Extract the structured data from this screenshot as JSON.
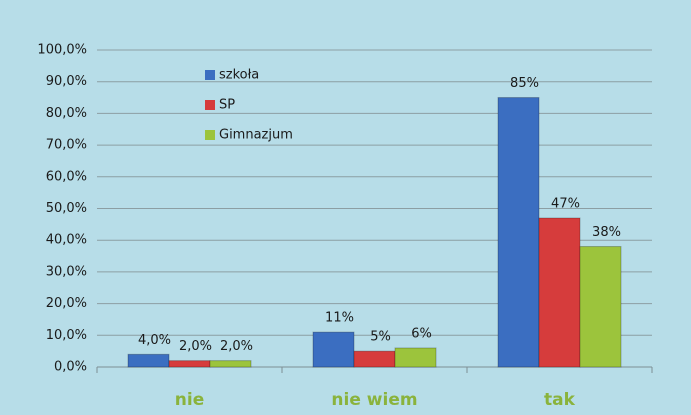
{
  "chart_data": {
    "type": "bar",
    "categories": [
      "nie",
      "nie wiem",
      "tak"
    ],
    "series": [
      {
        "name": "szkoła",
        "color": "#3b6ec1",
        "values": [
          4,
          11,
          85
        ],
        "value_labels": [
          "4,0%",
          "11%",
          "85%"
        ]
      },
      {
        "name": "SP",
        "color": "#d63c3c",
        "values": [
          2,
          5,
          47
        ],
        "value_labels": [
          "2,0%",
          "5%",
          "47%"
        ]
      },
      {
        "name": "Gimnazjum",
        "color": "#9cc43c",
        "values": [
          2,
          6,
          38
        ],
        "value_labels": [
          "2,0%",
          "6%",
          "38%"
        ]
      }
    ],
    "ylim": [
      0,
      100
    ],
    "yticks": [
      {
        "value": 0,
        "label": "0,0%"
      },
      {
        "value": 10,
        "label": "10,0%"
      },
      {
        "value": 20,
        "label": "20,0%"
      },
      {
        "value": 30,
        "label": "30,0%"
      },
      {
        "value": 40,
        "label": "40,0%"
      },
      {
        "value": 50,
        "label": "50,0%"
      },
      {
        "value": 60,
        "label": "60,0%"
      },
      {
        "value": 70,
        "label": "70,0%"
      },
      {
        "value": 80,
        "label": "80,0%"
      },
      {
        "value": 90,
        "label": "90,0%"
      },
      {
        "value": 100,
        "label": "100,0%"
      }
    ],
    "grid": true,
    "legend": "top-left"
  }
}
